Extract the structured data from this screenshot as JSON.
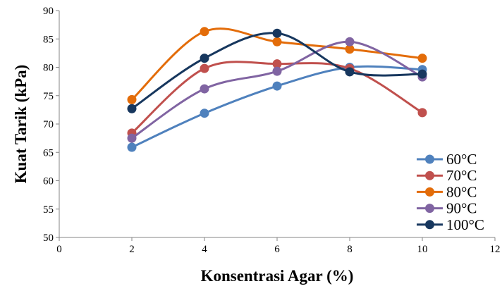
{
  "chart_data": {
    "type": "scatter",
    "xlabel": "Konsentrasi Agar (%)",
    "ylabel": "Kuat Tarik (kPa)",
    "xlim": [
      0,
      12
    ],
    "ylim": [
      50,
      90
    ],
    "x_ticks": [
      0,
      2,
      4,
      6,
      8,
      10,
      12
    ],
    "y_ticks": [
      50,
      55,
      60,
      65,
      70,
      75,
      80,
      85,
      90
    ],
    "grid": false,
    "legend_position": "right",
    "line_style": "smooth",
    "x": [
      2,
      4,
      6,
      8,
      10
    ],
    "series": [
      {
        "name": "60°C",
        "color": "#4F81BD",
        "values": [
          65.9,
          71.9,
          76.7,
          80.0,
          79.6
        ]
      },
      {
        "name": "70°C",
        "color": "#C0504D",
        "values": [
          68.4,
          79.8,
          80.6,
          79.8,
          72.0
        ]
      },
      {
        "name": "80°C",
        "color": "#E36C09",
        "values": [
          74.3,
          86.3,
          84.5,
          83.2,
          81.6
        ]
      },
      {
        "name": "90°C",
        "color": "#8064A2",
        "values": [
          67.5,
          76.2,
          79.3,
          84.5,
          78.3
        ]
      },
      {
        "name": "100°C",
        "color": "#17375E",
        "values": [
          72.7,
          81.6,
          86.0,
          79.2,
          78.8
        ]
      }
    ]
  }
}
